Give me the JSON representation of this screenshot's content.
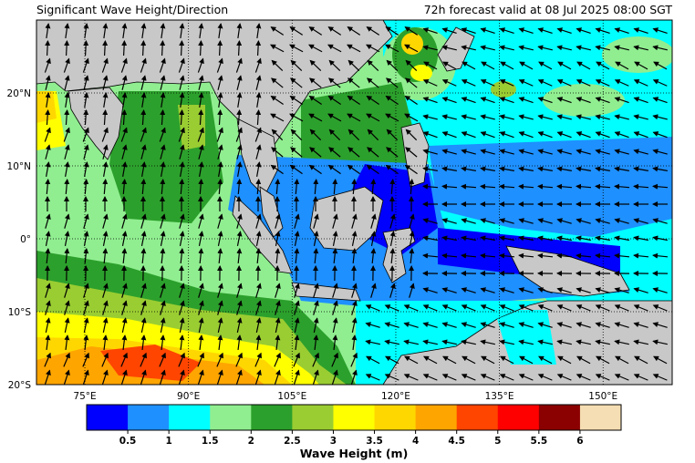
{
  "header": {
    "title": "Significant Wave Height/Direction",
    "valid_time": "72h forecast valid at 08 Jul 2025 08:00 SGT"
  },
  "map": {
    "lon_range": [
      68,
      160
    ],
    "lat_range": [
      -20,
      30
    ],
    "lon_ticks": [
      {
        "value": 75,
        "label": "75°E"
      },
      {
        "value": 90,
        "label": "90°E"
      },
      {
        "value": 105,
        "label": "105°E"
      },
      {
        "value": 120,
        "label": "120°E"
      },
      {
        "value": 135,
        "label": "135°E"
      },
      {
        "value": 150,
        "label": "150°E"
      }
    ],
    "lat_ticks": [
      {
        "value": 20,
        "label": "20°N"
      },
      {
        "value": 10,
        "label": "10°N"
      },
      {
        "value": 0,
        "label": "0°"
      },
      {
        "value": -10,
        "label": "10°S"
      },
      {
        "value": -20,
        "label": "20°S"
      }
    ],
    "gridlines": true,
    "land_color": "#c8c8c8"
  },
  "colorbar": {
    "title": "Wave Height (m)",
    "colors": [
      "#0000ff",
      "#1e90ff",
      "#00ffff",
      "#90ee90",
      "#2ca02c",
      "#9acd32",
      "#ffff00",
      "#ffd700",
      "#ffa500",
      "#ff4500",
      "#ff0000",
      "#8b0000",
      "#f5deb3"
    ],
    "tick_labels": [
      "0.5",
      "1",
      "1.5",
      "2",
      "2.5",
      "3",
      "3.5",
      "4",
      "4.5",
      "5",
      "5.5",
      "6"
    ]
  }
}
